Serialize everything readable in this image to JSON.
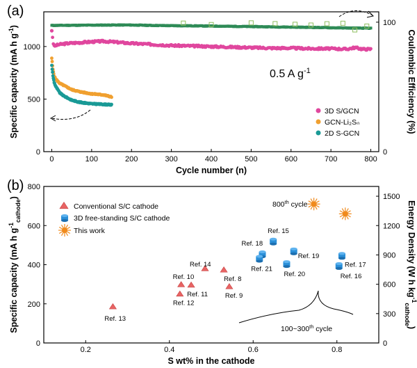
{
  "chart_data": [
    {
      "panel": "(a)",
      "type": "scatter",
      "xlabel": "Cycle number (n)",
      "ylabel": "Specific capacity (mA h g",
      "ylabel_sup": "-1",
      "ylabel_close": ")",
      "y2label": "Coulombic Efficiency (%)",
      "xlim": [
        -20,
        820
      ],
      "ylim": [
        0,
        1330
      ],
      "y2lim": [
        0,
        108
      ],
      "xticks": [
        0,
        100,
        200,
        300,
        400,
        500,
        600,
        700,
        800
      ],
      "yticks": [
        0,
        500,
        1000
      ],
      "y2ticks": [
        0,
        100
      ],
      "annotation_main": "0.5 A g",
      "annotation_sup": "-1",
      "legend": [
        "3D S/GCN",
        "GCN-Li₂Sₙ",
        "2D S-GCN"
      ],
      "series": [
        {
          "name": "3D S/GCN",
          "color": "#e0479e",
          "axis": "left",
          "x": [
            0,
            5,
            10,
            20,
            40,
            60,
            80,
            100,
            130,
            150,
            200,
            250,
            300,
            350,
            400,
            450,
            500,
            550,
            600,
            650,
            700,
            740,
            760,
            780,
            800
          ],
          "y": [
            1150,
            1000,
            1010,
            1020,
            1030,
            1035,
            1040,
            1045,
            1050,
            1045,
            1030,
            1020,
            1010,
            1005,
            1000,
            995,
            990,
            985,
            985,
            980,
            980,
            975,
            990,
            975,
            975
          ]
        },
        {
          "name": "GCN-Li₂Sₙ",
          "color": "#f0a030",
          "axis": "left",
          "x": [
            0,
            3,
            6,
            10,
            15,
            20,
            30,
            40,
            50,
            70,
            100,
            130,
            150
          ],
          "y": [
            890,
            780,
            720,
            690,
            670,
            650,
            630,
            610,
            590,
            570,
            550,
            540,
            520
          ]
        },
        {
          "name": "2D S-GCN",
          "color": "#1a9a96",
          "axis": "left",
          "x": [
            0,
            3,
            6,
            10,
            15,
            20,
            30,
            40,
            50,
            70,
            100,
            130,
            150
          ],
          "y": [
            820,
            720,
            660,
            620,
            590,
            560,
            530,
            510,
            490,
            470,
            455,
            450,
            445
          ]
        },
        {
          "name": "Coulombic efficiency (3D S/GCN)",
          "color": "#2e8b57",
          "axis": "right",
          "x": [
            0,
            50,
            100,
            150,
            200,
            250,
            300,
            350,
            400,
            450,
            500,
            550,
            600,
            650,
            700,
            750,
            800
          ],
          "y": [
            97.5,
            97.6,
            97.7,
            97.8,
            97.8,
            97.5,
            97.3,
            97.2,
            97.0,
            96.8,
            96.6,
            96.4,
            96.2,
            96.0,
            95.7,
            95.5,
            95.3
          ]
        },
        {
          "name": "Coulombic efficiency (open markers)",
          "color": "#8fbf5f",
          "axis": "right",
          "x": [
            330,
            400,
            500,
            560,
            610,
            650,
            690,
            730,
            760,
            790
          ],
          "y": [
            99.3,
            98.2,
            99.5,
            98.9,
            98.4,
            97.8,
            98.8,
            99.2,
            94.0,
            97.0
          ]
        }
      ]
    },
    {
      "panel": "(b)",
      "type": "scatter",
      "xlabel": "S wt% in the cathode",
      "ylabel": "Specific capacity (mA h g",
      "ylabel_sup": "-1",
      "ylabel_sub": "cathode",
      "ylabel_close": ")",
      "y2label": "Energy Density (W h kg",
      "y2label_sup": "-1",
      "y2label_sub": "cathode",
      "y2label_close": ")",
      "xlim": [
        0.1,
        0.9
      ],
      "ylim": [
        0,
        800
      ],
      "y2lim": [
        0,
        1600
      ],
      "xticks": [
        0.2,
        0.4,
        0.6,
        0.8
      ],
      "yticks": [
        0,
        200,
        400,
        600,
        800
      ],
      "y2ticks": [
        0,
        300,
        600,
        900,
        1200,
        1500
      ],
      "legend": [
        "Conventional S/C cathode",
        "3D free-standing S/C cathode",
        "This work"
      ],
      "annotation_800": "800",
      "annotation_800_sup": "th",
      "annotation_800_rest": " cycle",
      "annotation_range": "100~300",
      "annotation_range_sup": "th",
      "annotation_range_rest": " cycle",
      "series": [
        {
          "name": "Conventional S/C cathode",
          "color": "#e86464",
          "points": [
            {
              "x": 0.265,
              "y": 185,
              "label": "Ref. 13"
            },
            {
              "x": 0.425,
              "y": 250,
              "label": "Ref. 12"
            },
            {
              "x": 0.428,
              "y": 298,
              "label": "Ref. 10"
            },
            {
              "x": 0.452,
              "y": 296,
              "label": "Ref. 11"
            },
            {
              "x": 0.485,
              "y": 380,
              "label": "Ref. 14"
            },
            {
              "x": 0.53,
              "y": 373,
              "label": "Ref. 8"
            },
            {
              "x": 0.543,
              "y": 288,
              "label": "Ref. 9"
            }
          ]
        },
        {
          "name": "3D free-standing S/C cathode",
          "color": "#2a8fd8",
          "points": [
            {
              "x": 0.648,
              "y": 520,
              "label": "Ref. 15"
            },
            {
              "x": 0.622,
              "y": 455,
              "label": "Ref. 18"
            },
            {
              "x": 0.615,
              "y": 432,
              "label": "Ref. 21"
            },
            {
              "x": 0.697,
              "y": 470,
              "label": "Ref. 19"
            },
            {
              "x": 0.68,
              "y": 405,
              "label": "Ref. 20"
            },
            {
              "x": 0.812,
              "y": 447,
              "label": "Ref. 17"
            },
            {
              "x": 0.805,
              "y": 395,
              "label": "Ref. 16"
            }
          ]
        },
        {
          "name": "This work",
          "color": "#f08a1c",
          "points": [
            {
              "x": 0.745,
              "y": 710,
              "label": ""
            },
            {
              "x": 0.82,
              "y": 660,
              "label": ""
            }
          ]
        }
      ]
    }
  ]
}
